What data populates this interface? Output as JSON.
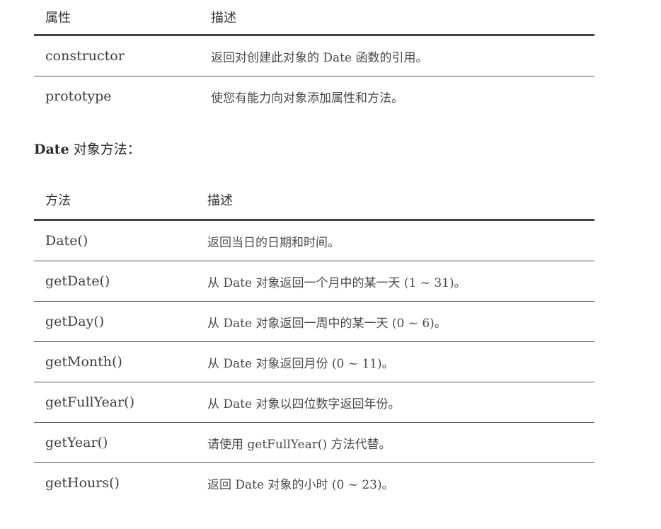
{
  "properties_table": {
    "headers": [
      "属性",
      "描述"
    ],
    "rows": [
      {
        "name": "constructor",
        "desc": "返回对创建此对象的 Date 函数的引用。"
      },
      {
        "name": "prototype",
        "desc": "使您有能力向对象添加属性和方法。"
      }
    ]
  },
  "methods_section": {
    "title_bold": "Date",
    "title_rest": " 对象方法："
  },
  "methods_table": {
    "headers": [
      "方法",
      "描述"
    ],
    "rows": [
      {
        "name": "Date()",
        "desc": "返回当日的日期和时间。"
      },
      {
        "name": "getDate()",
        "desc": "从 Date 对象返回一个月中的某一天 (1 ~ 31)。"
      },
      {
        "name": "getDay()",
        "desc": "从 Date 对象返回一周中的某一天 (0 ~ 6)。"
      },
      {
        "name": "getMonth()",
        "desc": "从 Date 对象返回月份 (0 ~ 11)。"
      },
      {
        "name": "getFullYear()",
        "desc": "从 Date 对象以四位数字返回年份。"
      },
      {
        "name": "getYear()",
        "desc": "请使用 getFullYear() 方法代替。"
      },
      {
        "name": "getHours()",
        "desc": "返回 Date 对象的小时 (0 ~ 23)。"
      }
    ]
  }
}
